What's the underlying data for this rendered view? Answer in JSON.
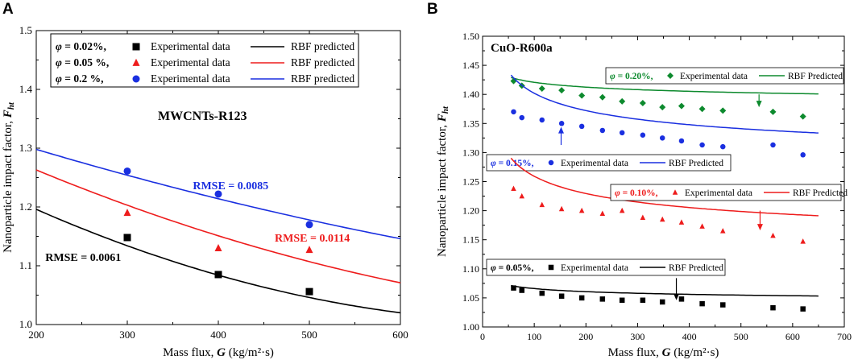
{
  "chart_data": [
    {
      "type": "scatter",
      "panel": "A",
      "title": "MWCNTs-R123",
      "xlabel_text": "Mass flux, ",
      "xlabel_var": "G",
      "xlabel_unit": " (kg/m²·s)",
      "ylabel_text": "Nanoparticle impact factor, ",
      "ylabel_var": "F",
      "ylabel_sub": "ht",
      "xlim": [
        200,
        600
      ],
      "ylim": [
        1.0,
        1.5
      ],
      "x_ticks": [
        "200",
        "300",
        "400",
        "500",
        "600"
      ],
      "y_ticks": [
        "1.0",
        "1.1",
        "1.2",
        "1.3",
        "1.4",
        "1.5"
      ],
      "legend": {
        "position": "top-left",
        "rows": [
          {
            "phi": "φ",
            "label": " = 0.02%,",
            "marker": "square",
            "color": "#000000",
            "exp_label": "Experimental data",
            "fit_label": "RBF predicted"
          },
          {
            "phi": "φ",
            "label": " = 0.05 %,",
            "marker": "triangle",
            "color": "#ee1c1c",
            "exp_label": "Experimental data",
            "fit_label": "RBF predicted"
          },
          {
            "phi": "φ",
            "label": " = 0.2 %,",
            "marker": "circle",
            "color": "#1a2fe0",
            "exp_label": "Experimental data",
            "fit_label": "RBF predicted"
          }
        ]
      },
      "series": [
        {
          "name": "φ = 0.02%",
          "color": "#000000",
          "marker": "square",
          "points": [
            {
              "x": 300,
              "y": 1.148
            },
            {
              "x": 400,
              "y": 1.085
            },
            {
              "x": 500,
              "y": 1.056
            }
          ],
          "fit": {
            "A": 1.196,
            "B": -0.00068,
            "C": 6e-07
          },
          "rmse": "RMSE = 0.0061",
          "rmse_pos": {
            "x": 210,
            "y": 1.108
          }
        },
        {
          "name": "φ = 0.05 %",
          "color": "#ee1c1c",
          "marker": "triangle",
          "points": [
            {
              "x": 300,
              "y": 1.19
            },
            {
              "x": 400,
              "y": 1.13
            },
            {
              "x": 500,
              "y": 1.127
            }
          ],
          "fit": {
            "A": 1.263,
            "B": -0.00064,
            "C": 4e-07
          },
          "rmse": "RMSE = 0.0114",
          "rmse_pos": {
            "x": 462,
            "y": 1.141
          }
        },
        {
          "name": "φ = 0.2 %",
          "color": "#1a2fe0",
          "marker": "circle",
          "points": [
            {
              "x": 300,
              "y": 1.261
            },
            {
              "x": 400,
              "y": 1.222
            },
            {
              "x": 500,
              "y": 1.17
            }
          ],
          "fit": {
            "A": 1.298,
            "B": -0.00046,
            "C": 2e-07
          },
          "rmse": "RMSE = 0.0085",
          "rmse_pos": {
            "x": 372,
            "y": 1.23
          }
        }
      ]
    },
    {
      "type": "scatter",
      "panel": "B",
      "title": "CuO-R600a",
      "xlabel_text": "Mass flux, ",
      "xlabel_var": "G",
      "xlabel_unit": " (kg/m²·s)",
      "ylabel_text": "Nanoparticle impact factor, ",
      "ylabel_var": "F",
      "ylabel_sub": "ht",
      "xlim": [
        0,
        700
      ],
      "ylim": [
        1.0,
        1.5
      ],
      "x_ticks": [
        "0",
        "100",
        "200",
        "300",
        "400",
        "500",
        "600",
        "700"
      ],
      "y_ticks": [
        "1.00",
        "1.05",
        "1.10",
        "1.15",
        "1.20",
        "1.25",
        "1.30",
        "1.35",
        "1.40",
        "1.45",
        "1.50"
      ],
      "series": [
        {
          "name": "φ = 0.20%",
          "color": "#0d8a2e",
          "marker": "diamond",
          "legend_phi": "φ",
          "legend_label": " = 0.20%,",
          "exp_label": "Experimental data",
          "fit_label": "RBF Predicted",
          "points": [
            {
              "x": 60,
              "y": 1.423
            },
            {
              "x": 76,
              "y": 1.415
            },
            {
              "x": 115,
              "y": 1.41
            },
            {
              "x": 153,
              "y": 1.407
            },
            {
              "x": 192,
              "y": 1.398
            },
            {
              "x": 232,
              "y": 1.395
            },
            {
              "x": 270,
              "y": 1.388
            },
            {
              "x": 310,
              "y": 1.385
            },
            {
              "x": 348,
              "y": 1.378
            },
            {
              "x": 385,
              "y": 1.38
            },
            {
              "x": 425,
              "y": 1.375
            },
            {
              "x": 465,
              "y": 1.372
            },
            {
              "x": 562,
              "y": 1.37
            },
            {
              "x": 620,
              "y": 1.362
            }
          ],
          "fit": {
            "a": 1.3567,
            "b": 0.0641,
            "c": 0.2
          },
          "arrow": {
            "x": 535,
            "y_from": 1.4,
            "y_to": 1.378
          }
        },
        {
          "name": "φ = 0.15%",
          "color": "#1a2fe0",
          "marker": "circle",
          "legend_phi": "φ",
          "legend_label": " = 0.15%,",
          "exp_label": "Experimental data",
          "fit_label": "RBF Predicted",
          "points": [
            {
              "x": 60,
              "y": 1.37
            },
            {
              "x": 76,
              "y": 1.36
            },
            {
              "x": 115,
              "y": 1.356
            },
            {
              "x": 153,
              "y": 1.35
            },
            {
              "x": 192,
              "y": 1.345
            },
            {
              "x": 232,
              "y": 1.338
            },
            {
              "x": 270,
              "y": 1.334
            },
            {
              "x": 310,
              "y": 1.33
            },
            {
              "x": 348,
              "y": 1.325
            },
            {
              "x": 385,
              "y": 1.32
            },
            {
              "x": 425,
              "y": 1.313
            },
            {
              "x": 465,
              "y": 1.31
            },
            {
              "x": 562,
              "y": 1.313
            },
            {
              "x": 620,
              "y": 1.296
            }
          ],
          "fit": {
            "a": 1.2429,
            "b": 0.1591,
            "c": 0.3
          },
          "arrow": {
            "x": 152,
            "y_from": 1.313,
            "y_to": 1.344
          }
        },
        {
          "name": "φ = 0.10%",
          "color": "#ee1c1c",
          "marker": "triangle",
          "legend_phi": "φ",
          "legend_label": " = 0.10%,",
          "exp_label": "Experimental data",
          "fit_label": "RBF Predicted",
          "points": [
            {
              "x": 60,
              "y": 1.238
            },
            {
              "x": 76,
              "y": 1.225
            },
            {
              "x": 115,
              "y": 1.21
            },
            {
              "x": 153,
              "y": 1.203
            },
            {
              "x": 192,
              "y": 1.2
            },
            {
              "x": 232,
              "y": 1.195
            },
            {
              "x": 270,
              "y": 1.2
            },
            {
              "x": 310,
              "y": 1.188
            },
            {
              "x": 348,
              "y": 1.185
            },
            {
              "x": 385,
              "y": 1.18
            },
            {
              "x": 425,
              "y": 1.173
            },
            {
              "x": 465,
              "y": 1.165
            },
            {
              "x": 562,
              "y": 1.157
            },
            {
              "x": 620,
              "y": 1.147
            }
          ],
          "fit": {
            "a": 1.1011,
            "b": 0.1581,
            "c": 0.3
          },
          "arrow": {
            "x": 537,
            "y_from": 1.2,
            "y_to": 1.166
          }
        },
        {
          "name": "φ = 0.05%",
          "color": "#000000",
          "marker": "square",
          "legend_phi": "φ",
          "legend_label": " = 0.05%,",
          "exp_label": "Experimental data",
          "fit_label": "RBF Predicted",
          "points": [
            {
              "x": 60,
              "y": 1.067
            },
            {
              "x": 76,
              "y": 1.063
            },
            {
              "x": 115,
              "y": 1.058
            },
            {
              "x": 153,
              "y": 1.053
            },
            {
              "x": 192,
              "y": 1.05
            },
            {
              "x": 232,
              "y": 1.048
            },
            {
              "x": 270,
              "y": 1.046
            },
            {
              "x": 310,
              "y": 1.046
            },
            {
              "x": 348,
              "y": 1.043
            },
            {
              "x": 385,
              "y": 1.048
            },
            {
              "x": 425,
              "y": 1.04
            },
            {
              "x": 465,
              "y": 1.038
            },
            {
              "x": 562,
              "y": 1.033
            },
            {
              "x": 620,
              "y": 1.031
            }
          ],
          "fit": {
            "a": 1.0251,
            "b": 0.0409,
            "c": 0.2
          },
          "arrow": {
            "x": 375,
            "y_from": 1.084,
            "y_to": 1.046
          }
        }
      ]
    }
  ]
}
